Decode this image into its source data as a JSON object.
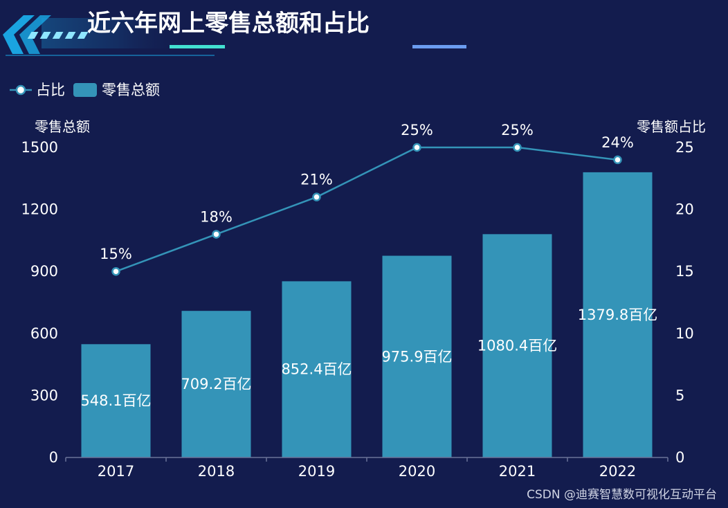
{
  "title": "近六年网上零售总额和占比",
  "legend": {
    "line_label": "占比",
    "bar_label": "零售总额"
  },
  "colors": {
    "background": "#131c4e",
    "bar": "#3494b8",
    "line": "#3494b8",
    "point_fill": "#ffffff",
    "axis": "#6b7399",
    "header_accent": "#1aa3e0",
    "header_glow": "#43e0d0"
  },
  "chart_data": {
    "type": "bar",
    "title": "近六年网上零售总额和占比",
    "categories": [
      "2017",
      "2018",
      "2019",
      "2020",
      "2021",
      "2022"
    ],
    "series": [
      {
        "name": "零售总额",
        "type": "bar",
        "axis": "left",
        "values": [
          548.1,
          709.2,
          852.4,
          975.9,
          1080.4,
          1379.8
        ],
        "labels": [
          "548.1百亿",
          "709.2百亿",
          "852.4百亿",
          "975.9百亿",
          "1080.4百亿",
          "1379.8百亿"
        ]
      },
      {
        "name": "占比",
        "type": "line",
        "axis": "right",
        "values": [
          15,
          18,
          21,
          25,
          25,
          24
        ],
        "labels": [
          "15%",
          "18%",
          "21%",
          "25%",
          "25%",
          "24%"
        ]
      }
    ],
    "y_left": {
      "name": "零售总额",
      "min": 0,
      "max": 1500,
      "ticks": [
        "0",
        "300",
        "600",
        "900",
        "1200",
        "1500"
      ]
    },
    "y_right": {
      "name": "零售额占比",
      "min": 0,
      "max": 25,
      "ticks": [
        "0",
        "5",
        "10",
        "15",
        "20",
        "25"
      ]
    },
    "legend_position": "top-left",
    "grid": false
  },
  "watermark": "CSDN @迪赛智慧数可视化互动平台"
}
